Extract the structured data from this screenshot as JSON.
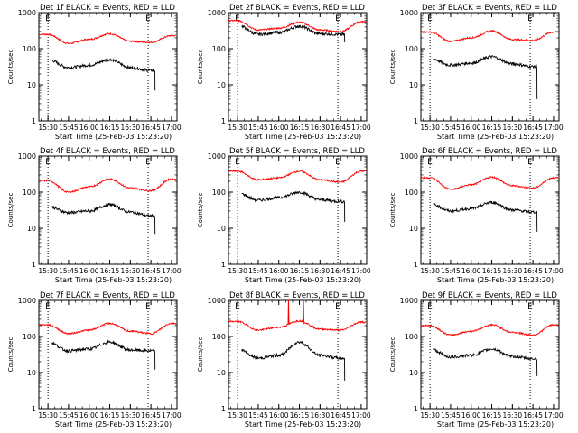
{
  "figure": {
    "panel_title_suffix": "BLACK = Events, RED = LLD",
    "ylabel": "Counts/sec",
    "xlabel": "Start Time (25-Feb-03 15:23:20)",
    "x_tick_labels": [
      "15:30",
      "15:45",
      "16:00",
      "16:15",
      "16:30",
      "16:45",
      "17:00"
    ],
    "y_tick_labels": [
      "1",
      "10",
      "100",
      "1000"
    ],
    "marker_label": "E",
    "colors": {
      "events": "#000000",
      "lld": "#ff0000"
    }
  },
  "chart_data": [
    {
      "type": "line",
      "title": "Det 1f BLACK = Events, RED = LLD",
      "xlabel": "Start Time (25-Feb-03 15:23:20)",
      "ylabel": "Counts/sec",
      "x_ticks": [
        "15:30",
        "15:45",
        "16:00",
        "16:15",
        "16:30",
        "16:45",
        "17:00"
      ],
      "ylim": [
        1,
        1000
      ],
      "yscale": "log",
      "markers": [
        "15:30",
        "16:43"
      ],
      "x": [
        "15:30",
        "15:45",
        "16:00",
        "16:15",
        "16:30",
        "16:45",
        "17:00"
      ],
      "series": [
        {
          "name": "LLD",
          "color": "#ff0000",
          "values": [
            250,
            140,
            180,
            260,
            160,
            150,
            230
          ]
        },
        {
          "name": "Events",
          "color": "#000000",
          "values": [
            50,
            30,
            35,
            50,
            30,
            25,
            null
          ],
          "end": "16:48",
          "end_value": 7
        }
      ]
    },
    {
      "type": "line",
      "title": "Det 2f BLACK = Events, RED = LLD",
      "xlabel": "Start Time (25-Feb-03 15:23:20)",
      "ylabel": "Counts/sec",
      "x_ticks": [
        "15:30",
        "15:45",
        "16:00",
        "16:15",
        "16:30",
        "16:45",
        "17:00"
      ],
      "ylim": [
        1,
        1000
      ],
      "yscale": "log",
      "markers": [
        "15:30",
        "16:43"
      ],
      "x": [
        "15:30",
        "15:45",
        "16:00",
        "16:15",
        "16:30",
        "16:45",
        "17:00"
      ],
      "series": [
        {
          "name": "LLD",
          "color": "#ff0000",
          "values": [
            600,
            330,
            370,
            540,
            330,
            300,
            560
          ]
        },
        {
          "name": "Events",
          "color": "#000000",
          "values": [
            450,
            250,
            280,
            420,
            260,
            250,
            null
          ],
          "end": "16:48",
          "end_value": 150
        }
      ]
    },
    {
      "type": "line",
      "title": "Det 3f BLACK = Events, RED = LLD",
      "xlabel": "Start Time (25-Feb-03 15:23:20)",
      "ylabel": "Counts/sec",
      "x_ticks": [
        "15:30",
        "15:45",
        "16:00",
        "16:15",
        "16:30",
        "16:45",
        "17:00"
      ],
      "ylim": [
        1,
        1000
      ],
      "yscale": "log",
      "markers": [
        "15:30",
        "16:43"
      ],
      "x": [
        "15:30",
        "15:45",
        "16:00",
        "16:15",
        "16:30",
        "16:45",
        "17:00"
      ],
      "series": [
        {
          "name": "LLD",
          "color": "#ff0000",
          "values": [
            290,
            160,
            200,
            310,
            180,
            170,
            290
          ]
        },
        {
          "name": "Events",
          "color": "#000000",
          "values": [
            55,
            35,
            40,
            60,
            38,
            32,
            null
          ],
          "end": "16:48",
          "end_value": 4
        }
      ]
    },
    {
      "type": "line",
      "title": "Det 4f BLACK = Events, RED = LLD",
      "xlabel": "Start Time (25-Feb-03 15:23:20)",
      "ylabel": "Counts/sec",
      "x_ticks": [
        "15:30",
        "15:45",
        "16:00",
        "16:15",
        "16:30",
        "16:45",
        "17:00"
      ],
      "ylim": [
        1,
        1000
      ],
      "yscale": "log",
      "markers": [
        "15:30",
        "16:43"
      ],
      "x": [
        "15:30",
        "15:45",
        "16:00",
        "16:15",
        "16:30",
        "16:45",
        "17:00"
      ],
      "series": [
        {
          "name": "LLD",
          "color": "#ff0000",
          "values": [
            210,
            100,
            140,
            230,
            130,
            110,
            230
          ]
        },
        {
          "name": "Events",
          "color": "#000000",
          "values": [
            40,
            27,
            30,
            45,
            28,
            22,
            null
          ],
          "end": "16:48",
          "end_value": 7
        }
      ]
    },
    {
      "type": "line",
      "title": "Det 5f BLACK = Events, RED = LLD",
      "xlabel": "Start Time (25-Feb-03 15:23:20)",
      "ylabel": "Counts/sec",
      "x_ticks": [
        "15:30",
        "15:45",
        "16:00",
        "16:15",
        "16:30",
        "16:45",
        "17:00"
      ],
      "ylim": [
        1,
        1000
      ],
      "yscale": "log",
      "markers": [
        "15:30",
        "16:43"
      ],
      "x": [
        "15:30",
        "15:45",
        "16:00",
        "16:15",
        "16:30",
        "16:45",
        "17:00"
      ],
      "series": [
        {
          "name": "LLD",
          "color": "#ff0000",
          "values": [
            380,
            220,
            250,
            380,
            220,
            190,
            380
          ]
        },
        {
          "name": "Events",
          "color": "#000000",
          "values": [
            95,
            60,
            70,
            100,
            62,
            55,
            null
          ],
          "end": "16:48",
          "end_value": 15
        }
      ]
    },
    {
      "type": "line",
      "title": "Det 6f BLACK = Events, RED = LLD",
      "xlabel": "Start Time (25-Feb-03 15:23:20)",
      "ylabel": "Counts/sec",
      "x_ticks": [
        "15:30",
        "15:45",
        "16:00",
        "16:15",
        "16:30",
        "16:45",
        "17:00"
      ],
      "ylim": [
        1,
        1000
      ],
      "yscale": "log",
      "markers": [
        "15:30",
        "16:43"
      ],
      "x": [
        "15:30",
        "15:45",
        "16:00",
        "16:15",
        "16:30",
        "16:45",
        "17:00"
      ],
      "series": [
        {
          "name": "LLD",
          "color": "#ff0000",
          "values": [
            250,
            120,
            160,
            260,
            150,
            130,
            250
          ]
        },
        {
          "name": "Events",
          "color": "#000000",
          "values": [
            48,
            30,
            35,
            52,
            32,
            28,
            null
          ],
          "end": "16:48",
          "end_value": 8
        }
      ]
    },
    {
      "type": "line",
      "title": "Det 7f BLACK = Events, RED = LLD",
      "xlabel": "Start Time (25-Feb-03 15:23:20)",
      "ylabel": "Counts/sec",
      "x_ticks": [
        "15:30",
        "15:45",
        "16:00",
        "16:15",
        "16:30",
        "16:45",
        "17:00"
      ],
      "ylim": [
        1,
        1000
      ],
      "yscale": "log",
      "markers": [
        "15:30",
        "16:43"
      ],
      "x": [
        "15:30",
        "15:45",
        "16:00",
        "16:15",
        "16:30",
        "16:45",
        "17:00"
      ],
      "series": [
        {
          "name": "LLD",
          "color": "#ff0000",
          "values": [
            210,
            120,
            150,
            230,
            140,
            120,
            230
          ]
        },
        {
          "name": "Events",
          "color": "#000000",
          "values": [
            70,
            40,
            45,
            70,
            42,
            40,
            null
          ],
          "end": "16:48",
          "end_value": 12
        }
      ]
    },
    {
      "type": "line",
      "title": "Det 8f BLACK = Events, RED = LLD",
      "xlabel": "Start Time (25-Feb-03 15:23:20)",
      "ylabel": "Counts/sec",
      "x_ticks": [
        "15:30",
        "15:45",
        "16:00",
        "16:15",
        "16:30",
        "16:45",
        "17:00"
      ],
      "ylim": [
        1,
        1000
      ],
      "yscale": "log",
      "markers": [
        "15:30",
        "16:43"
      ],
      "x": [
        "15:30",
        "15:45",
        "16:00",
        "16:15",
        "16:30",
        "16:45",
        "17:00"
      ],
      "series": [
        {
          "name": "LLD",
          "color": "#ff0000",
          "values": [
            260,
            150,
            180,
            270,
            160,
            150,
            250
          ],
          "spike": {
            "from": "16:07",
            "to": "16:18",
            "value": 1000
          }
        },
        {
          "name": "Events",
          "color": "#000000",
          "values": [
            45,
            25,
            30,
            70,
            30,
            25,
            null
          ],
          "end": "16:48",
          "end_value": 6
        }
      ]
    },
    {
      "type": "line",
      "title": "Det 9f BLACK = Events, RED = LLD",
      "xlabel": "Start Time (25-Feb-03 15:23:20)",
      "ylabel": "Counts/sec",
      "x_ticks": [
        "15:30",
        "15:45",
        "16:00",
        "16:15",
        "16:30",
        "16:45",
        "17:00"
      ],
      "ylim": [
        1,
        1000
      ],
      "yscale": "log",
      "markers": [
        "15:30",
        "16:43"
      ],
      "x": [
        "15:30",
        "15:45",
        "16:00",
        "16:15",
        "16:30",
        "16:45",
        "17:00"
      ],
      "series": [
        {
          "name": "LLD",
          "color": "#ff0000",
          "values": [
            200,
            110,
            140,
            210,
            130,
            110,
            210
          ]
        },
        {
          "name": "Events",
          "color": "#000000",
          "values": [
            45,
            27,
            30,
            45,
            28,
            24,
            null
          ],
          "end": "16:48",
          "end_value": 8
        }
      ]
    }
  ]
}
